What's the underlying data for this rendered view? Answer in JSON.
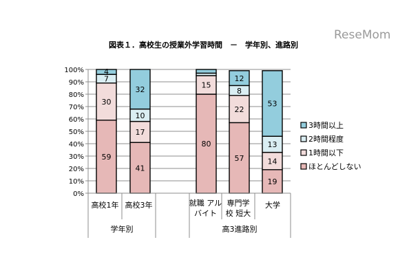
{
  "header": {
    "title": "図表１．高校生の授業外学習時間　－　学年別、進路別",
    "watermark": "ReseMom"
  },
  "chart_data": {
    "type": "bar",
    "stacked": true,
    "percent": true,
    "ylim": [
      0,
      100
    ],
    "yticks": [
      "0%",
      "10%",
      "20%",
      "30%",
      "40%",
      "50%",
      "60%",
      "70%",
      "80%",
      "90%",
      "100%"
    ],
    "categories": [
      {
        "lines": [
          "高校1年"
        ],
        "group": 0
      },
      {
        "lines": [
          "高校3年"
        ],
        "group": 0
      },
      {
        "lines": [
          "就職 アル",
          "バイト"
        ],
        "group": 1
      },
      {
        "lines": [
          "専門学",
          "校 短大"
        ],
        "group": 1
      },
      {
        "lines": [
          "大学"
        ],
        "group": 1
      }
    ],
    "groups": [
      "学年別",
      "高3進路別"
    ],
    "series": [
      {
        "name": "ほとんどしない",
        "color": "#e6b8b7",
        "values": [
          59,
          41,
          80,
          57,
          19
        ]
      },
      {
        "name": "1時間以下",
        "color": "#f2dcdb",
        "values": [
          30,
          17,
          15,
          22,
          14
        ]
      },
      {
        "name": "2時間程度",
        "color": "#daeef3",
        "values": [
          7,
          10,
          2,
          8,
          13
        ]
      },
      {
        "name": "3時間以上",
        "color": "#93cddd",
        "values": [
          4,
          32,
          3,
          12,
          53
        ]
      }
    ],
    "data_labels": [
      [
        "59",
        "41",
        "80",
        "57",
        "19"
      ],
      [
        "30",
        "17",
        "15",
        "22",
        "14"
      ],
      [
        "7",
        "10",
        "",
        "8",
        "13"
      ],
      [
        "4",
        "32",
        "",
        "12",
        "53"
      ]
    ],
    "legend": {
      "position": "right",
      "order": [
        "3時間以上",
        "2時間程度",
        "1時間以下",
        "ほとんどしない"
      ]
    },
    "grid": true
  }
}
